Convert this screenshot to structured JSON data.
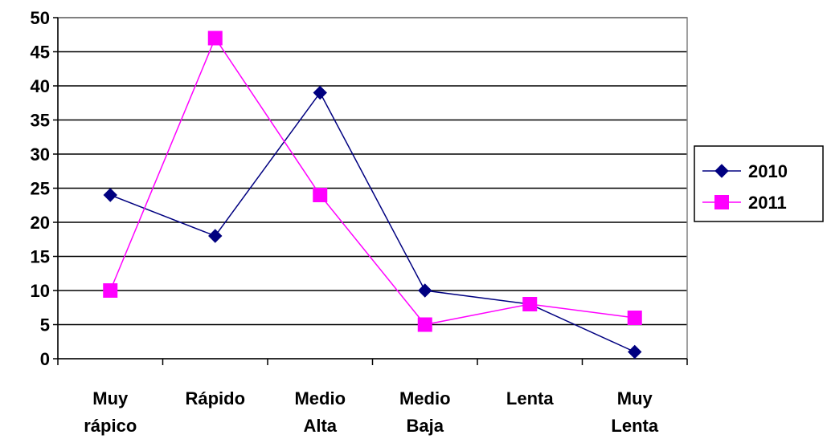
{
  "chart_data": {
    "type": "line",
    "categories": [
      [
        "Muy",
        "rápico"
      ],
      [
        "Rápido"
      ],
      [
        "Medio",
        "Alta"
      ],
      [
        "Medio",
        "Baja"
      ],
      [
        "Lenta"
      ],
      [
        "Muy",
        "Lenta"
      ]
    ],
    "ylim": [
      0,
      50
    ],
    "ytick_step": 5,
    "grid": true,
    "legend_position": "right",
    "series": [
      {
        "name": "2010",
        "color": "#000080",
        "marker": "diamond",
        "values": [
          24,
          18,
          39,
          10,
          8,
          1
        ]
      },
      {
        "name": "2011",
        "color": "#FF00FF",
        "marker": "square",
        "values": [
          10,
          47,
          24,
          5,
          8,
          6
        ]
      }
    ]
  }
}
